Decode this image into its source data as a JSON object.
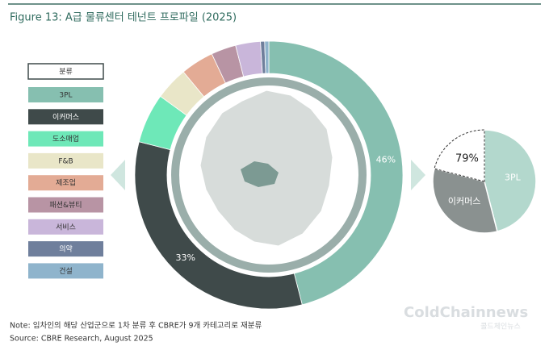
{
  "chart_data": [
    {
      "type": "donut",
      "title": "Figure 13: A급 물류센터 테넌트 프로파일 (2025)",
      "legend_title": "분류",
      "categories": [
        "3PL",
        "이커머스",
        "도소매업",
        "F&B",
        "제조업",
        "패션&뷰티",
        "서비스",
        "의약",
        "건설"
      ],
      "values": [
        46,
        33,
        6,
        4,
        4,
        3,
        3,
        0.5,
        0.5
      ],
      "value_labels": [
        "46%",
        "33%",
        null,
        null,
        null,
        null,
        null,
        null,
        null
      ],
      "colors": [
        "#86bfb0",
        "#3f4a4a",
        "#6ee8b8",
        "#e9e6c8",
        "#e3ab95",
        "#b894a4",
        "#c9b6da",
        "#6f7f9c",
        "#8fb4cc"
      ]
    },
    {
      "type": "pie",
      "categories": [
        "3PL",
        "이커머스",
        null
      ],
      "values": [
        46,
        33,
        21
      ],
      "colors": [
        "#b3d8cd",
        "#8a9190",
        "#ffffff"
      ],
      "annotation": "79%"
    }
  ],
  "note": "Note: 임차인의 해당 산업군으로 1차 분류 후 CBRE가 9개 카테고리로 재분류",
  "source": "Source: CBRE Research, August 2025",
  "watermark": "ColdChainnews",
  "watermark_sub": "콜드체인뉴스"
}
